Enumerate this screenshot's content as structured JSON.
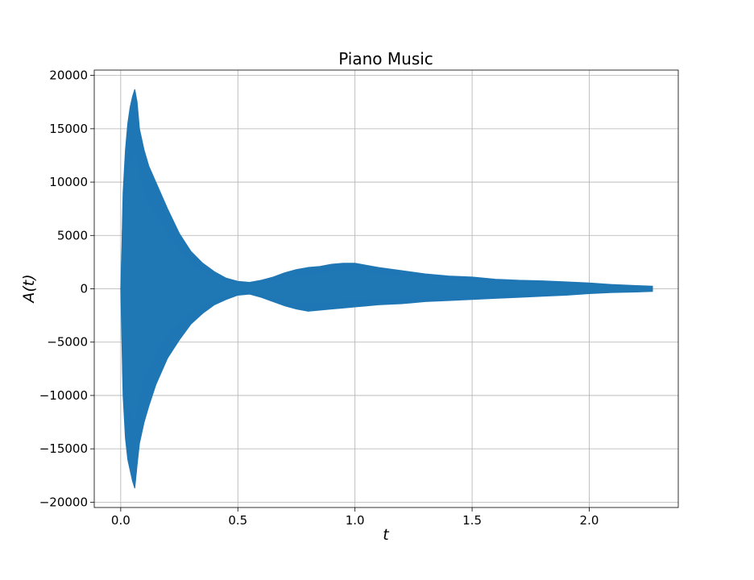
{
  "chart_data": {
    "type": "line",
    "title": "Piano Music",
    "xlabel": "t",
    "ylabel": "A(t)",
    "xlim": [
      -0.113,
      2.38
    ],
    "ylim": [
      -20500,
      20500
    ],
    "xticks": [
      0.0,
      0.5,
      1.0,
      1.5,
      2.0
    ],
    "xtick_labels": [
      "0.0",
      "0.5",
      "1.0",
      "1.5",
      "2.0"
    ],
    "yticks": [
      -20000,
      -15000,
      -10000,
      -5000,
      0,
      5000,
      10000,
      15000,
      20000
    ],
    "ytick_labels": [
      "−20000",
      "−15000",
      "−10000",
      "−5000",
      "0",
      "5000",
      "10000",
      "15000",
      "20000"
    ],
    "grid": true,
    "series": [
      {
        "color": "#1f77b4",
        "envelope": {
          "t": [
            0.0,
            0.005,
            0.01,
            0.02,
            0.03,
            0.04,
            0.05,
            0.06,
            0.07,
            0.08,
            0.1,
            0.12,
            0.15,
            0.18,
            0.2,
            0.25,
            0.3,
            0.35,
            0.4,
            0.45,
            0.5,
            0.55,
            0.6,
            0.65,
            0.7,
            0.75,
            0.8,
            0.85,
            0.9,
            0.95,
            1.0,
            1.05,
            1.1,
            1.2,
            1.3,
            1.4,
            1.5,
            1.6,
            1.7,
            1.8,
            1.9,
            2.0,
            2.1,
            2.2,
            2.27
          ],
          "upper": [
            0,
            4000,
            9000,
            13000,
            15500,
            17000,
            18000,
            18700,
            17500,
            15000,
            13000,
            11500,
            10000,
            8500,
            7500,
            5200,
            3500,
            2400,
            1600,
            1000,
            700,
            600,
            800,
            1100,
            1500,
            1800,
            2000,
            2100,
            2300,
            2400,
            2400,
            2200,
            2000,
            1700,
            1400,
            1200,
            1100,
            900,
            800,
            750,
            650,
            550,
            400,
            300,
            250
          ],
          "lower": [
            0,
            -5000,
            -10000,
            -14000,
            -16000,
            -17000,
            -18000,
            -18700,
            -16500,
            -14500,
            -12500,
            -11000,
            -9000,
            -7500,
            -6500,
            -4800,
            -3300,
            -2300,
            -1500,
            -1000,
            -600,
            -500,
            -800,
            -1200,
            -1600,
            -1900,
            -2100,
            -2000,
            -1900,
            -1800,
            -1700,
            -1600,
            -1500,
            -1400,
            -1200,
            -1100,
            -1000,
            -900,
            -800,
            -700,
            -600,
            -450,
            -350,
            -300,
            -250
          ]
        }
      }
    ]
  }
}
